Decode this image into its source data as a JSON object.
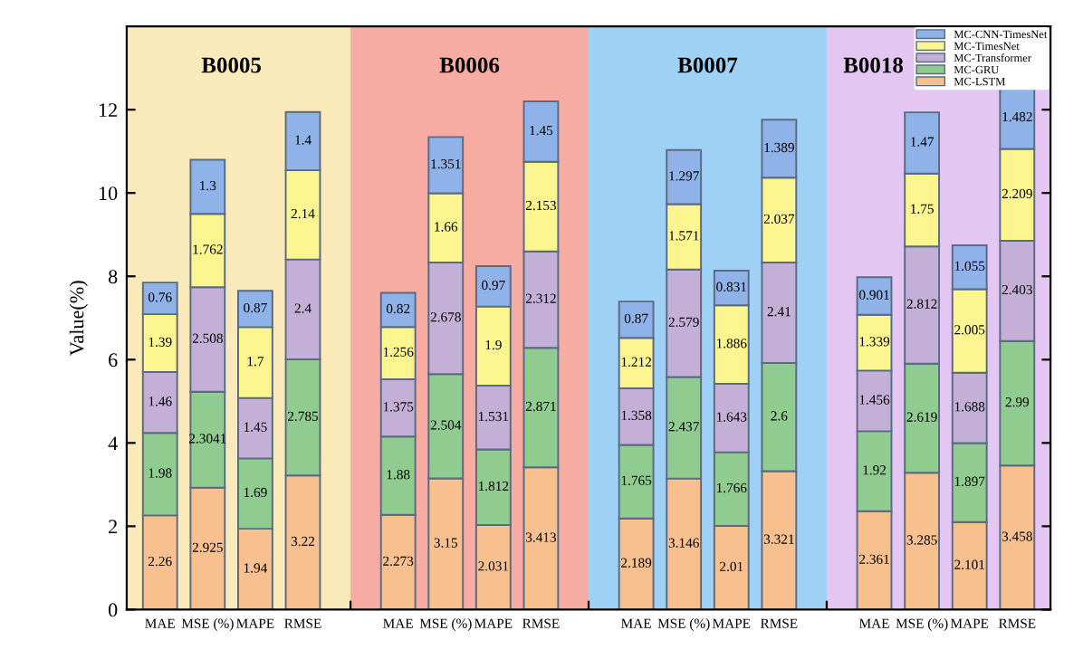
{
  "chart_data": {
    "type": "bar",
    "stacked": true,
    "ylabel": "Value(%)",
    "categories": [
      "MAE",
      "MSE (%)",
      "MAPE",
      "RMSE",
      null,
      "MAE",
      "MSE (%)",
      "MAPE",
      "RMSE",
      null,
      "MAE",
      "MSE (%)",
      "MAPE",
      "RMSE",
      null,
      "MAE",
      "MSE (%)",
      "MAPE",
      "RMSE"
    ],
    "ylim": [
      0,
      14
    ],
    "yticks": [
      0,
      2,
      4,
      6,
      8,
      10,
      12
    ],
    "annotations": [
      "B0005",
      "B0006",
      "B0007",
      "B0018"
    ],
    "grid": false,
    "legend": "top right",
    "data_labels": true,
    "series": [
      {
        "name": "MC-LSTM",
        "color": "#f9c08f",
        "values": [
          2.26,
          2.925,
          1.94,
          3.22,
          null,
          2.273,
          3.15,
          2.031,
          3.413,
          null,
          2.189,
          3.146,
          2.01,
          3.321,
          null,
          2.361,
          3.285,
          2.101,
          3.458
        ]
      },
      {
        "name": "MC-GRU",
        "color": "#90cc90",
        "values": [
          1.98,
          2.3041,
          1.69,
          2.785,
          null,
          1.88,
          2.504,
          1.812,
          2.871,
          null,
          1.765,
          2.437,
          1.766,
          2.6,
          null,
          1.92,
          2.619,
          1.897,
          2.99
        ]
      },
      {
        "name": "MC-Transformer",
        "color": "#c4b0d7",
        "values": [
          1.46,
          2.508,
          1.45,
          2.4,
          null,
          1.375,
          2.678,
          1.531,
          2.312,
          null,
          1.358,
          2.579,
          1.643,
          2.41,
          null,
          1.456,
          2.812,
          1.688,
          2.403
        ]
      },
      {
        "name": "MC-TimesNet",
        "color": "#fdf590",
        "values": [
          1.39,
          1.762,
          1.7,
          2.14,
          null,
          1.256,
          1.66,
          1.9,
          2.153,
          null,
          1.212,
          1.571,
          1.886,
          2.037,
          null,
          1.339,
          1.75,
          2.005,
          2.209
        ]
      },
      {
        "name": "MC-CNN-TimesNet",
        "color": "#8fb2e8",
        "values": [
          0.76,
          1.3,
          0.87,
          1.4,
          null,
          0.82,
          1.351,
          0.97,
          1.45,
          null,
          0.87,
          1.297,
          0.831,
          1.389,
          null,
          0.901,
          1.47,
          1.055,
          1.482
        ]
      }
    ]
  }
}
